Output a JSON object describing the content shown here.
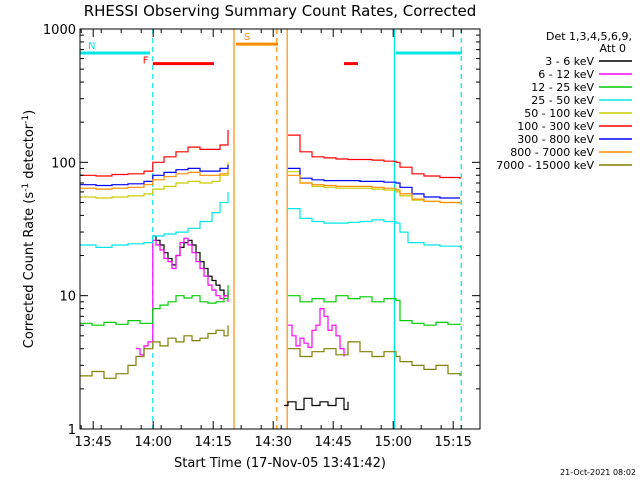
{
  "chart_data": {
    "type": "line",
    "title": "RHESSI Observing Summary Count Rates, Corrected",
    "xlabel": "Start Time (17-Nov-05 13:41:42)",
    "ylabel_main": "Corrected Count Rate (s",
    "ylabel_sup1": "-1",
    "ylabel_mid": " detector",
    "ylabel_sup2": "-1",
    "ylabel_end": ")",
    "y_scale": "log",
    "ylim": [
      1,
      1000
    ],
    "y_ticks": [
      {
        "value": 1,
        "label": "1"
      },
      {
        "value": 10,
        "label": "10"
      },
      {
        "value": 100,
        "label": "100"
      },
      {
        "value": 1000,
        "label": "1000"
      }
    ],
    "x_unit": "minutes after 13:41:42",
    "xlim": [
      0,
      100
    ],
    "x_ticks": [
      {
        "value": 3.3,
        "label": "13:45"
      },
      {
        "value": 18.3,
        "label": "14:00"
      },
      {
        "value": 33.3,
        "label": "14:15"
      },
      {
        "value": 48.3,
        "label": "14:30"
      },
      {
        "value": 63.3,
        "label": "14:45"
      },
      {
        "value": 78.3,
        "label": "15:00"
      },
      {
        "value": 93.3,
        "label": "15:15"
      }
    ],
    "legend_header_1": "Det 1,3,4,5,6,9,",
    "legend_header_2": "Att 0",
    "legend_placement": "right",
    "series": [
      {
        "name": "3 - 6 keV",
        "color": "#000000",
        "points": [
          [
            18.2,
            28
          ],
          [
            19,
            26
          ],
          [
            20,
            24
          ],
          [
            21,
            21
          ],
          [
            22,
            19
          ],
          [
            23,
            17
          ],
          [
            24,
            20
          ],
          [
            25,
            23
          ],
          [
            26,
            25
          ],
          [
            27,
            26
          ],
          [
            28,
            24
          ],
          [
            29,
            21
          ],
          [
            30,
            18
          ],
          [
            31,
            16
          ],
          [
            32,
            14
          ],
          [
            33,
            13
          ],
          [
            34,
            12
          ],
          [
            35,
            11
          ],
          [
            36,
            10
          ],
          [
            37,
            11
          ],
          [
            51,
            1.5
          ],
          [
            52,
            1.6
          ],
          [
            54,
            1.4
          ],
          [
            56,
            1.7
          ],
          [
            58,
            1.5
          ],
          [
            60,
            1.6
          ],
          [
            62,
            1.5
          ],
          [
            64,
            1.7
          ],
          [
            66,
            1.4
          ],
          [
            67,
            1.6
          ]
        ]
      },
      {
        "name": "6 - 12 keV",
        "color": "#ff00ff",
        "points": [
          [
            14,
            4
          ],
          [
            15,
            3.6
          ],
          [
            16,
            4.2
          ],
          [
            17,
            4.5
          ],
          [
            18.2,
            26
          ],
          [
            19,
            24
          ],
          [
            20,
            22
          ],
          [
            21,
            19
          ],
          [
            22,
            18
          ],
          [
            23,
            16
          ],
          [
            24,
            20
          ],
          [
            25,
            25
          ],
          [
            26,
            27
          ],
          [
            27,
            24
          ],
          [
            28,
            21
          ],
          [
            29,
            18
          ],
          [
            30,
            16
          ],
          [
            31,
            14
          ],
          [
            32,
            12
          ],
          [
            33,
            11
          ],
          [
            34,
            10
          ],
          [
            35,
            9.5
          ],
          [
            36,
            10
          ],
          [
            37,
            9
          ],
          [
            52,
            6
          ],
          [
            53,
            5
          ],
          [
            54,
            4.2
          ],
          [
            55,
            4.8
          ],
          [
            56,
            4.4
          ],
          [
            57,
            4.1
          ],
          [
            58,
            5.5
          ],
          [
            59,
            6
          ],
          [
            60,
            8
          ],
          [
            61,
            7
          ],
          [
            62,
            5.5
          ],
          [
            63,
            6
          ],
          [
            64,
            5
          ],
          [
            65,
            4
          ],
          [
            66,
            3.5
          ]
        ]
      },
      {
        "name": "12 - 25 keV",
        "color": "#00cc00",
        "points": [
          [
            0,
            6.2
          ],
          [
            3,
            6
          ],
          [
            6,
            6.3
          ],
          [
            9,
            6.1
          ],
          [
            12,
            6.5
          ],
          [
            15,
            6.2
          ],
          [
            18.2,
            8
          ],
          [
            20,
            8.5
          ],
          [
            22,
            9
          ],
          [
            24,
            10
          ],
          [
            26,
            9.6
          ],
          [
            28,
            10
          ],
          [
            30,
            9
          ],
          [
            32,
            8.8
          ],
          [
            34,
            9
          ],
          [
            36,
            9.5
          ],
          [
            37,
            12
          ],
          [
            52,
            10
          ],
          [
            55,
            9
          ],
          [
            58,
            9.5
          ],
          [
            61,
            9
          ],
          [
            64,
            10
          ],
          [
            67,
            9.5
          ],
          [
            70,
            9.8
          ],
          [
            73,
            9
          ],
          [
            76,
            9.5
          ],
          [
            79,
            9.2
          ],
          [
            80,
            6.5
          ],
          [
            83,
            6.2
          ],
          [
            86,
            6
          ],
          [
            89,
            6.3
          ],
          [
            92,
            6.1
          ],
          [
            95,
            6
          ]
        ]
      },
      {
        "name": "25 - 50 keV",
        "color": "#00e5e5",
        "points": [
          [
            0,
            24
          ],
          [
            4,
            23
          ],
          [
            8,
            24
          ],
          [
            12,
            24.5
          ],
          [
            16,
            25
          ],
          [
            18.2,
            28
          ],
          [
            21,
            29
          ],
          [
            24,
            30
          ],
          [
            27,
            32
          ],
          [
            30,
            36
          ],
          [
            33,
            42
          ],
          [
            35,
            50
          ],
          [
            37,
            60
          ],
          [
            52,
            45
          ],
          [
            55,
            38
          ],
          [
            58,
            36
          ],
          [
            61,
            35
          ],
          [
            64,
            35
          ],
          [
            67,
            35.5
          ],
          [
            70,
            36
          ],
          [
            73,
            37
          ],
          [
            76,
            36
          ],
          [
            79,
            35
          ],
          [
            80,
            30
          ],
          [
            82,
            25
          ],
          [
            86,
            24
          ],
          [
            90,
            23.5
          ],
          [
            95,
            23
          ]
        ]
      },
      {
        "name": "50 - 100 keV",
        "color": "#cccc00",
        "points": [
          [
            0,
            55
          ],
          [
            4,
            54
          ],
          [
            8,
            55
          ],
          [
            12,
            56
          ],
          [
            16,
            58
          ],
          [
            18.2,
            63
          ],
          [
            21,
            66
          ],
          [
            24,
            70
          ],
          [
            27,
            72
          ],
          [
            30,
            70
          ],
          [
            33,
            72
          ],
          [
            35,
            80
          ],
          [
            37,
            100
          ],
          [
            52,
            85
          ],
          [
            55,
            70
          ],
          [
            58,
            66
          ],
          [
            61,
            65
          ],
          [
            64,
            64
          ],
          [
            67,
            64
          ],
          [
            70,
            64
          ],
          [
            73,
            63
          ],
          [
            76,
            62
          ],
          [
            79,
            60
          ],
          [
            80,
            56
          ],
          [
            83,
            52
          ],
          [
            86,
            51
          ],
          [
            90,
            50
          ],
          [
            95,
            49
          ]
        ]
      },
      {
        "name": "100 - 300 keV",
        "color": "#ff0000",
        "points": [
          [
            0,
            80
          ],
          [
            4,
            79
          ],
          [
            8,
            81
          ],
          [
            12,
            82
          ],
          [
            16,
            86
          ],
          [
            18.2,
            100
          ],
          [
            21,
            110
          ],
          [
            24,
            120
          ],
          [
            27,
            130
          ],
          [
            30,
            125
          ],
          [
            33,
            125
          ],
          [
            35,
            135
          ],
          [
            37,
            175
          ],
          [
            52,
            160
          ],
          [
            55,
            120
          ],
          [
            58,
            110
          ],
          [
            61,
            108
          ],
          [
            64,
            106
          ],
          [
            67,
            105
          ],
          [
            70,
            105
          ],
          [
            73,
            104
          ],
          [
            76,
            102
          ],
          [
            79,
            100
          ],
          [
            80,
            92
          ],
          [
            83,
            82
          ],
          [
            86,
            79
          ],
          [
            90,
            77
          ],
          [
            95,
            75
          ]
        ]
      },
      {
        "name": "300 - 800 keV",
        "color": "#0000ff",
        "points": [
          [
            0,
            68
          ],
          [
            4,
            67
          ],
          [
            8,
            68
          ],
          [
            12,
            69
          ],
          [
            16,
            72
          ],
          [
            18.2,
            80
          ],
          [
            21,
            84
          ],
          [
            24,
            88
          ],
          [
            27,
            90
          ],
          [
            30,
            86
          ],
          [
            33,
            86
          ],
          [
            35,
            90
          ],
          [
            37,
            96
          ],
          [
            52,
            90
          ],
          [
            55,
            76
          ],
          [
            58,
            74
          ],
          [
            61,
            73
          ],
          [
            64,
            73
          ],
          [
            67,
            73
          ],
          [
            70,
            72
          ],
          [
            73,
            72
          ],
          [
            76,
            71
          ],
          [
            79,
            70
          ],
          [
            80,
            65
          ],
          [
            83,
            58
          ],
          [
            86,
            55
          ],
          [
            90,
            54
          ],
          [
            95,
            54
          ]
        ]
      },
      {
        "name": "800 - 7000 keV",
        "color": "#ff8c00",
        "points": [
          [
            0,
            64
          ],
          [
            4,
            63
          ],
          [
            8,
            64
          ],
          [
            12,
            65
          ],
          [
            16,
            68
          ],
          [
            18.2,
            74
          ],
          [
            21,
            78
          ],
          [
            24,
            82
          ],
          [
            27,
            84
          ],
          [
            30,
            80
          ],
          [
            33,
            80
          ],
          [
            35,
            82
          ],
          [
            37,
            88
          ],
          [
            52,
            80
          ],
          [
            55,
            70
          ],
          [
            58,
            68
          ],
          [
            61,
            67
          ],
          [
            64,
            66
          ],
          [
            67,
            66
          ],
          [
            70,
            66
          ],
          [
            73,
            65
          ],
          [
            76,
            64
          ],
          [
            79,
            62
          ],
          [
            80,
            58
          ],
          [
            83,
            53
          ],
          [
            86,
            51
          ],
          [
            90,
            50
          ],
          [
            95,
            49
          ]
        ]
      },
      {
        "name": "7000 - 15000 keV",
        "color": "#808000",
        "points": [
          [
            0,
            2.5
          ],
          [
            3,
            2.7
          ],
          [
            6,
            2.4
          ],
          [
            9,
            2.6
          ],
          [
            12,
            3
          ],
          [
            14,
            3.5
          ],
          [
            16,
            4
          ],
          [
            18.2,
            4.5
          ],
          [
            20,
            4.2
          ],
          [
            22,
            4.8
          ],
          [
            24,
            4.5
          ],
          [
            26,
            5
          ],
          [
            28,
            4.6
          ],
          [
            30,
            4.8
          ],
          [
            32,
            5.2
          ],
          [
            34,
            5.5
          ],
          [
            36,
            5
          ],
          [
            37,
            6
          ],
          [
            52,
            4
          ],
          [
            55,
            3.5
          ],
          [
            58,
            3.8
          ],
          [
            61,
            4
          ],
          [
            64,
            3.6
          ],
          [
            67,
            4.5
          ],
          [
            70,
            3.8
          ],
          [
            73,
            3.5
          ],
          [
            76,
            3.8
          ],
          [
            79,
            3.5
          ],
          [
            80,
            3.2
          ],
          [
            83,
            3
          ],
          [
            86,
            2.8
          ],
          [
            89,
            3
          ],
          [
            92,
            2.6
          ],
          [
            95,
            2.5
          ]
        ]
      }
    ],
    "vertical_lines": [
      {
        "x": 18.2,
        "color": "#00e5e5",
        "style": "dashed"
      },
      {
        "x": 38.5,
        "color": "#ff8c00",
        "style": "solid"
      },
      {
        "x": 49.2,
        "color": "#ff8c00",
        "style": "dashed"
      },
      {
        "x": 51.8,
        "color": "#ff8c00",
        "style": "solid"
      },
      {
        "x": 78.6,
        "color": "#00e5e5",
        "style": "solid"
      },
      {
        "x": 95.3,
        "color": "#00e5e5",
        "style": "dashed"
      }
    ],
    "flag_bars": [
      {
        "label": "N",
        "color": "#00e5e5",
        "y": 660,
        "segments": [
          [
            0,
            17.5
          ],
          [
            79,
            95.5
          ]
        ]
      },
      {
        "label": "S",
        "color": "#ff8c00",
        "y": 770,
        "segments": [
          [
            39,
            49.5
          ]
        ]
      },
      {
        "label": "F",
        "color": "#ff0000",
        "y": 550,
        "segments": [
          [
            18.2,
            33.5
          ],
          [
            66,
            69.5
          ]
        ]
      }
    ],
    "footer_date": "21-Oct-2021 08:02"
  }
}
